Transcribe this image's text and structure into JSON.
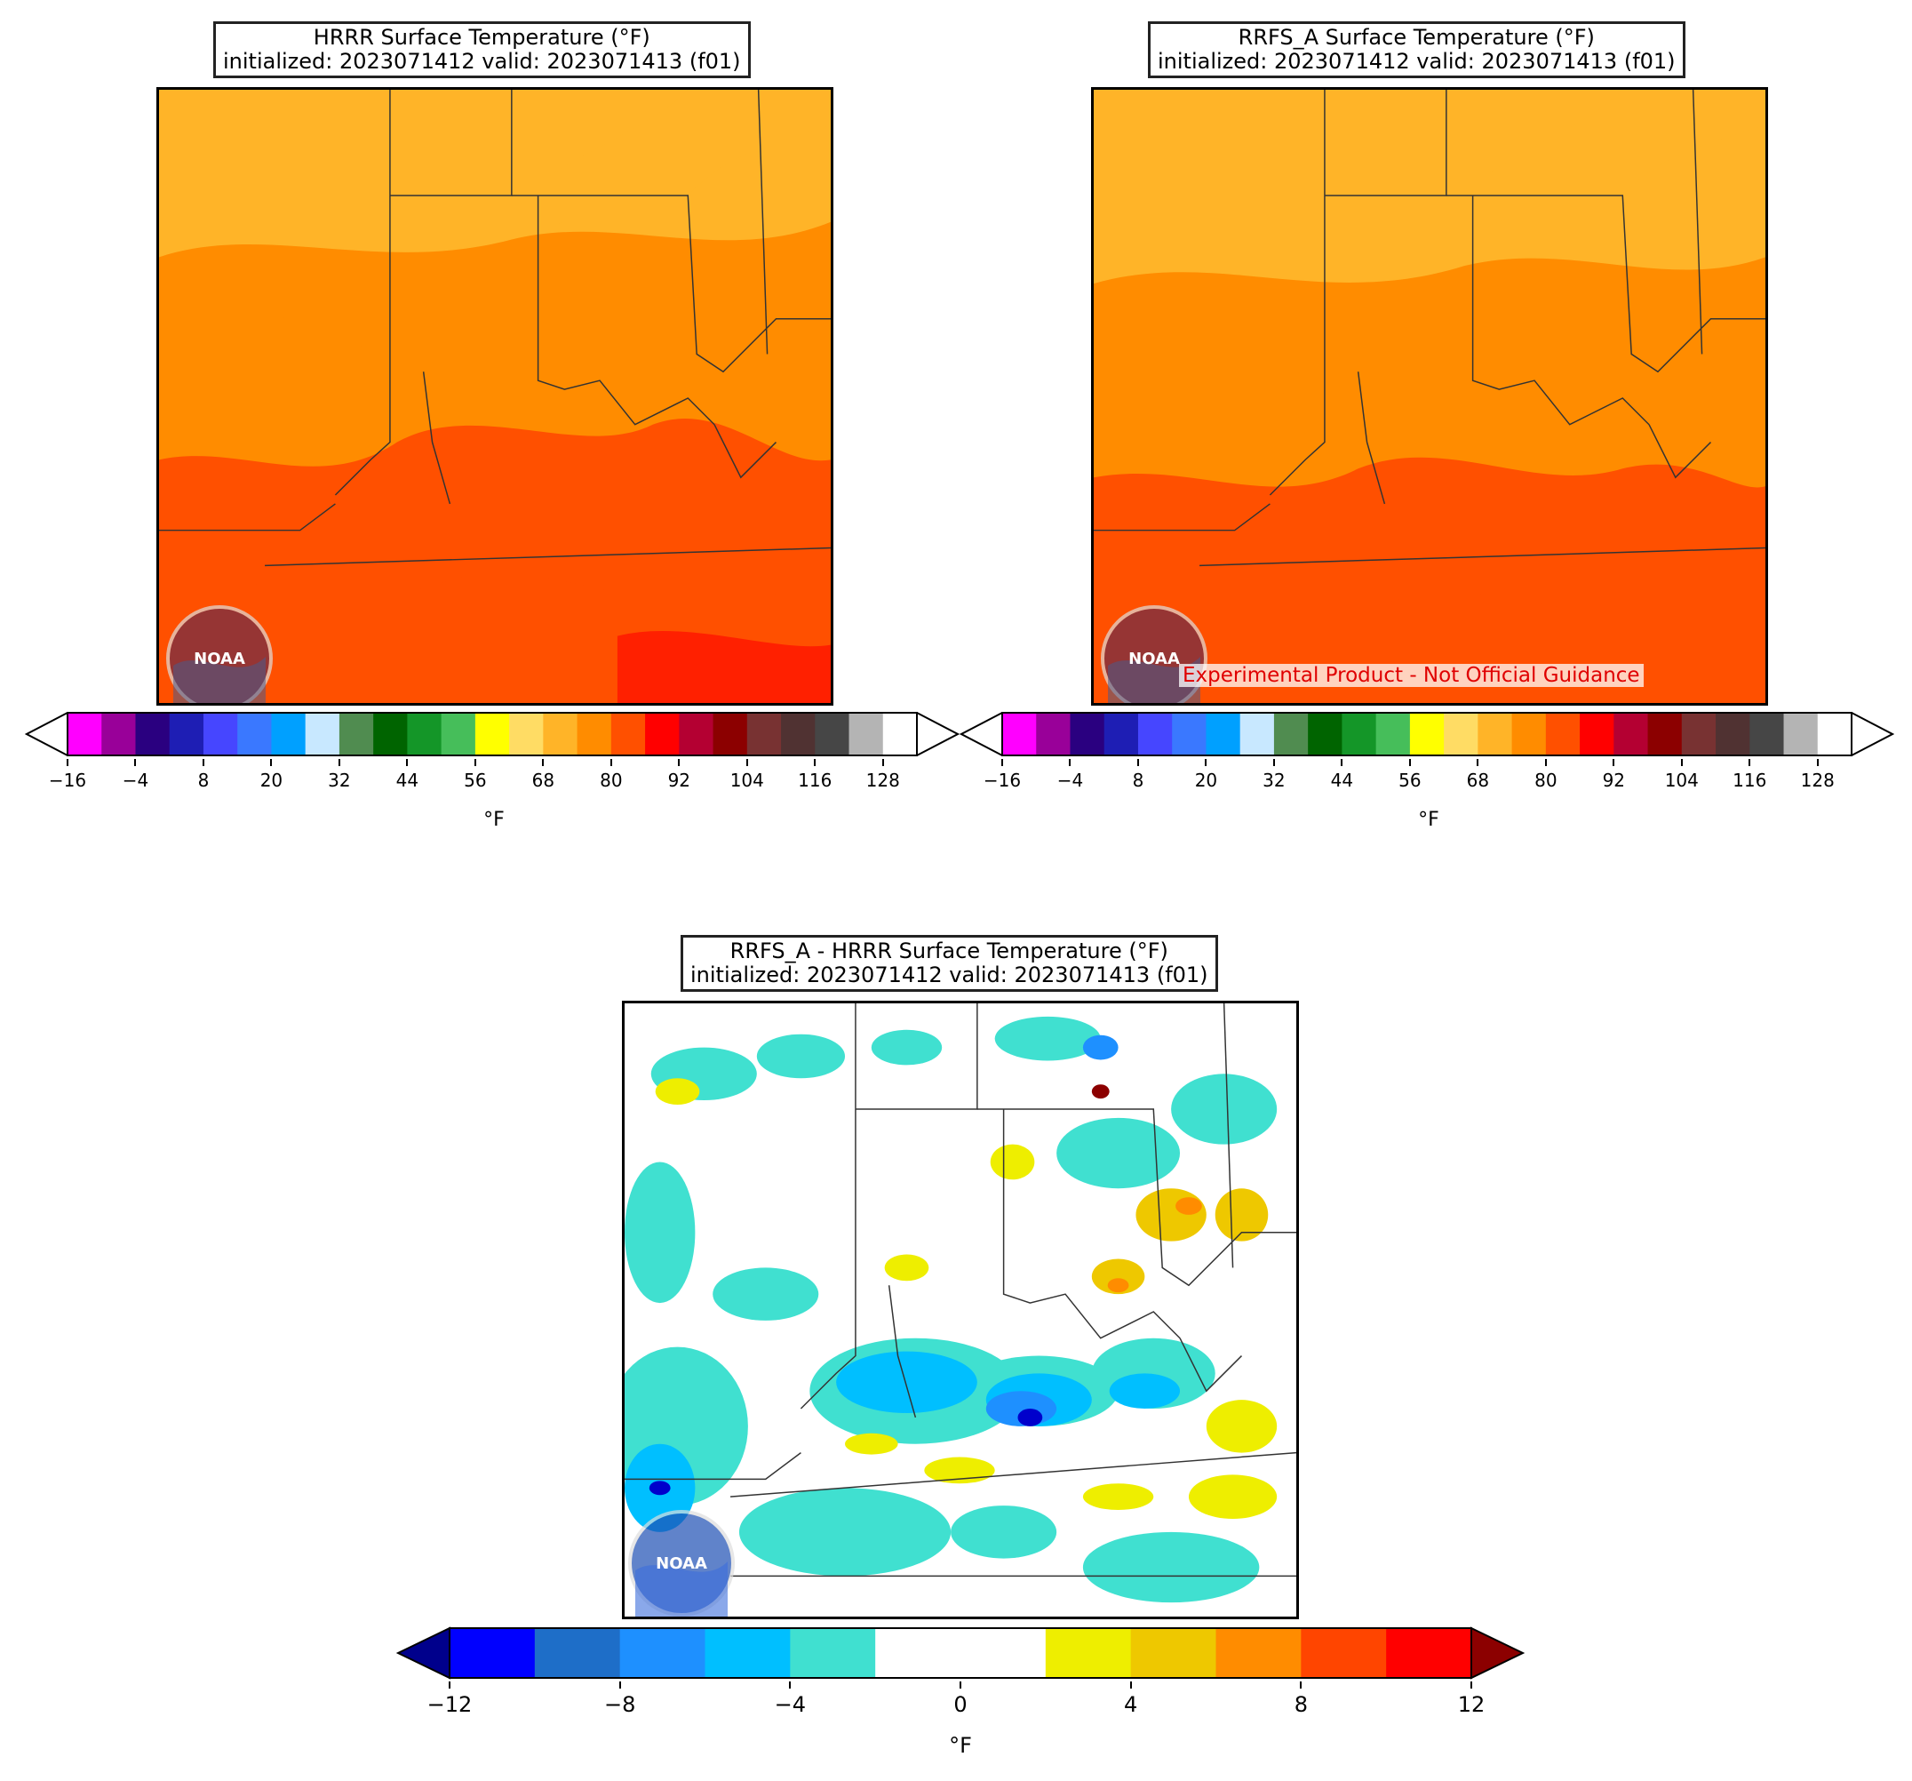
{
  "panels": {
    "hrrr": {
      "title_line1": "HRRR Surface Temperature (°F)",
      "title_line2": "initialized: 2023071412 valid: 2023071413 (f01)"
    },
    "rrfs": {
      "title_line1": "RRFS_A Surface Temperature (°F)",
      "title_line2": "initialized: 2023071412 valid: 2023071413 (f01)",
      "disclaimer": "Experimental Product - Not Official Guidance"
    },
    "diff": {
      "title_line1": "RRFS_A - HRRR Surface Temperature (°F)",
      "title_line2": "initialized: 2023071412 valid: 2023071413 (f01)"
    }
  },
  "logo_text": "NOAA",
  "temp_colorbar": {
    "unit": "°F",
    "ticks": [
      "−16",
      "−4",
      "8",
      "20",
      "32",
      "44",
      "56",
      "68",
      "80",
      "92",
      "104",
      "116",
      "128"
    ],
    "colors": [
      "#ff00ff",
      "#990099",
      "#2a0080",
      "#1e1eb4",
      "#4646ff",
      "#3a78ff",
      "#00a0ff",
      "#c8e8ff",
      "#508c50",
      "#006400",
      "#149628",
      "#46be5a",
      "#ffff00",
      "#ffdc64",
      "#ffb428",
      "#ff8c00",
      "#ff5000",
      "#ff0000",
      "#b40032",
      "#8c0000",
      "#783232",
      "#503232",
      "#464646",
      "#b4b4b4",
      "#ffffff"
    ]
  },
  "diff_colorbar": {
    "unit": "°F",
    "ticks": [
      "−12",
      "−8",
      "−4",
      "0",
      "4",
      "8",
      "12"
    ],
    "under_color": "#00008c",
    "over_color": "#8c0000",
    "colors": [
      "#0000ff",
      "#1e6ec8",
      "#1e90ff",
      "#00bfff",
      "#40e0d0",
      "#ffffff",
      "#ffffff",
      "#eeee00",
      "#eec800",
      "#ff8c00",
      "#ff4500",
      "#ff0000"
    ]
  }
}
